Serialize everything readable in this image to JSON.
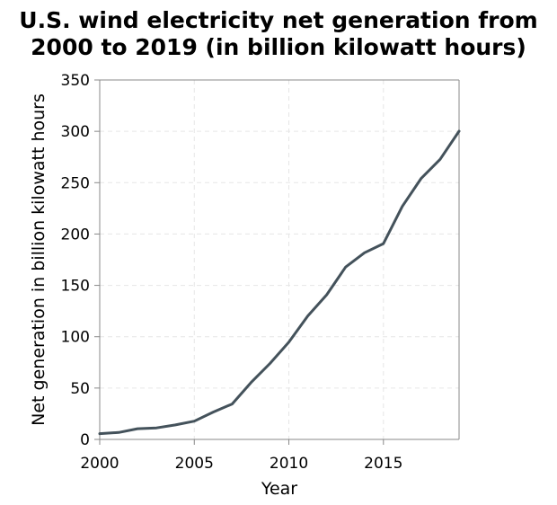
{
  "chart_data": {
    "type": "line",
    "title_lines": [
      "U.S. wind electricity net generation from",
      "2000 to 2019 (in billion kilowatt hours)"
    ],
    "xlabel": "Year",
    "ylabel": "Net generation in billion kilowatt hours",
    "xlim": [
      2000,
      2019
    ],
    "ylim": [
      0,
      350
    ],
    "x_ticks": [
      2000,
      2005,
      2010,
      2015
    ],
    "y_ticks": [
      0,
      50,
      100,
      150,
      200,
      250,
      300,
      350
    ],
    "grid": true,
    "series": [
      {
        "color": "#44525b",
        "x": [
          2000,
          2001,
          2002,
          2003,
          2004,
          2005,
          2006,
          2007,
          2008,
          2009,
          2010,
          2011,
          2012,
          2013,
          2014,
          2015,
          2016,
          2017,
          2018,
          2019
        ],
        "values": [
          5.6,
          6.7,
          10.4,
          11.2,
          14.1,
          17.8,
          26.6,
          34.5,
          55.4,
          73.9,
          94.7,
          120.2,
          140.8,
          167.8,
          181.7,
          190.7,
          226.9,
          254.3,
          272.7,
          300.1
        ]
      }
    ]
  }
}
